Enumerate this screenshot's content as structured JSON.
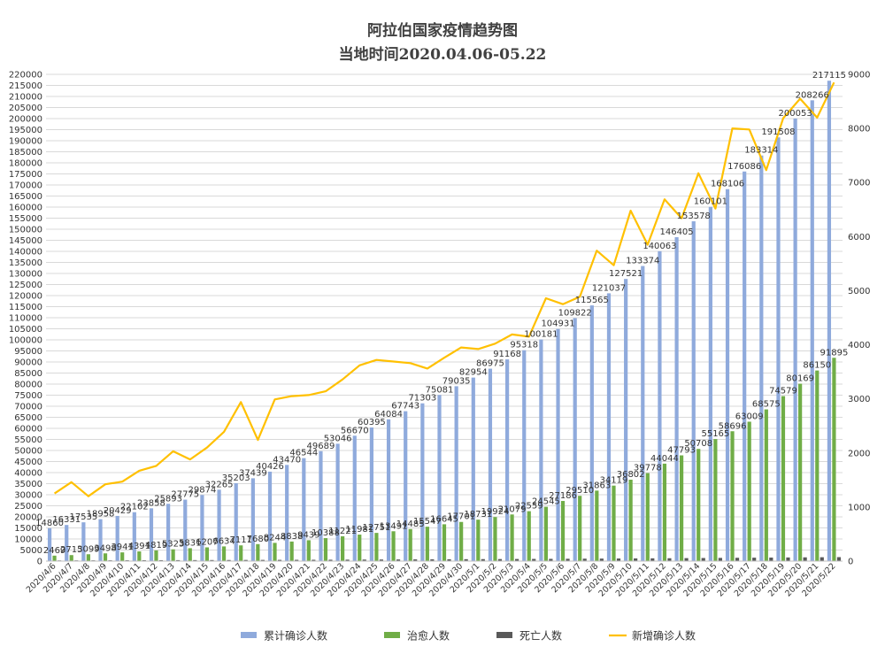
{
  "chart_data": {
    "type": "bar+line",
    "title": "阿拉伯国家疫情趋势图",
    "subtitle": "当地时间2020.04.06-05.22",
    "categories": [
      "2020/4/6",
      "2020/4/7",
      "2020/4/8",
      "2020/4/9",
      "2020/4/10",
      "2020/4/11",
      "2020/4/12",
      "2020/4/13",
      "2020/4/14",
      "2020/4/15",
      "2020/4/16",
      "2020/4/17",
      "2020/4/18",
      "2020/4/19",
      "2020/4/20",
      "2020/4/21",
      "2020/4/22",
      "2020/4/23",
      "2020/4/24",
      "2020/4/25",
      "2020/4/26",
      "2020/4/27",
      "2020/4/28",
      "2020/4/29",
      "2020/4/30",
      "2020/5/1",
      "2020/5/2",
      "2020/5/3",
      "2020/5/4",
      "2020/5/5",
      "2020/5/6",
      "2020/5/7",
      "2020/5/8",
      "2020/5/9",
      "2020/5/10",
      "2020/5/11",
      "2020/5/12",
      "2020/5/13",
      "2020/5/14",
      "2020/5/15",
      "2020/5/16",
      "2020/5/17",
      "2020/5/18",
      "2020/5/19",
      "2020/5/20",
      "2020/5/21",
      "2020/5/22"
    ],
    "series": [
      {
        "name": "累计确诊人数",
        "axis": "left",
        "kind": "bar",
        "color": "#8faadc",
        "values": [
          14860,
          16331,
          17535,
          18958,
          20429,
          22102,
          23858,
          25893,
          27775,
          29874,
          32265,
          35203,
          37439,
          40426,
          43470,
          46544,
          49689,
          53046,
          56670,
          60395,
          64084,
          67743,
          71303,
          75081,
          79035,
          82954,
          86975,
          91168,
          95318,
          100181,
          104931,
          109822,
          115565,
          121037,
          127521,
          133374,
          140063,
          146405,
          153578,
          160101,
          168106,
          176086,
          183314,
          191508,
          200053,
          208266,
          217115
        ]
      },
      {
        "name": "治愈人数",
        "axis": "left",
        "kind": "bar",
        "color": "#70ad47",
        "values": [
          2469,
          2715,
          3099,
          3498,
          3941,
          4391,
          4819,
          5323,
          5831,
          6207,
          6634,
          7111,
          7680,
          8244,
          8838,
          9439,
          10388,
          11221,
          11981,
          12751,
          13491,
          14485,
          15547,
          16645,
          17701,
          18731,
          19924,
          21079,
          22559,
          24545,
          27186,
          29510,
          31863,
          34119,
          36802,
          39778,
          44044,
          47793,
          50708,
          55165,
          58696,
          63009,
          68575,
          74579,
          80169,
          86150,
          91895
        ]
      },
      {
        "name": "死亡人数",
        "axis": "left",
        "kind": "bar",
        "color": "#595959",
        "values": [
          300,
          320,
          340,
          360,
          380,
          400,
          420,
          440,
          460,
          480,
          500,
          520,
          540,
          560,
          580,
          600,
          630,
          660,
          690,
          720,
          750,
          780,
          810,
          840,
          870,
          900,
          930,
          960,
          990,
          1020,
          1060,
          1100,
          1140,
          1180,
          1220,
          1260,
          1300,
          1350,
          1400,
          1450,
          1500,
          1550,
          1600,
          1650,
          1700,
          1750,
          1800
        ]
      },
      {
        "name": "新增确诊人数",
        "axis": "right",
        "kind": "line",
        "color": "#ffc000",
        "values": [
          1250,
          1460,
          1200,
          1420,
          1470,
          1670,
          1760,
          2030,
          1880,
          2100,
          2390,
          2940,
          2240,
          2990,
          3050,
          3070,
          3140,
          3360,
          3620,
          3720,
          3690,
          3660,
          3560,
          3760,
          3950,
          3920,
          4020,
          4190,
          4150,
          4860,
          4750,
          4890,
          5740,
          5470,
          6480,
          5850,
          6690,
          6340,
          7170,
          6520,
          8000,
          7980,
          7230,
          8190,
          8550,
          8200,
          8850
        ]
      }
    ],
    "y_left": {
      "min": 0,
      "max": 220000,
      "step": 5000
    },
    "y_right": {
      "min": 0,
      "max": 9000,
      "step": 1000
    },
    "grid": true,
    "legend_position": "bottom",
    "data_labels": true
  }
}
